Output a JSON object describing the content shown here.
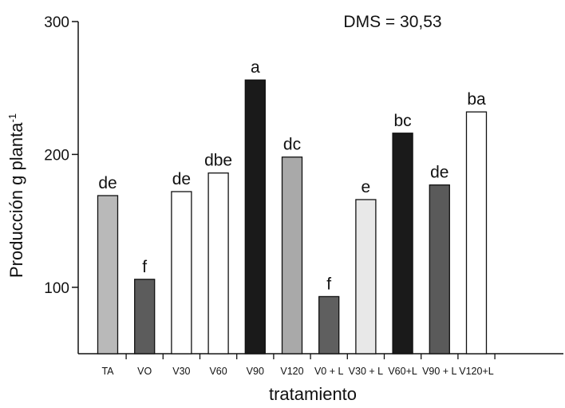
{
  "chart_data": {
    "type": "bar",
    "annotation": "DMS = 30,53",
    "xlabel": "tratamiento",
    "ylabel_main": "Producción g planta",
    "ylabel_sup": "-1",
    "ylim": [
      50,
      300
    ],
    "yticks": [
      {
        "value": 100,
        "label": "100"
      },
      {
        "value": 200,
        "label": "200"
      },
      {
        "value": 300,
        "label": "300"
      }
    ],
    "categories": [
      "TA",
      "VO",
      "V30",
      "V60",
      "V90",
      "V120",
      "V0 + L",
      "V30 + L",
      "V60+L",
      "V90 + L",
      "V120+L"
    ],
    "values": [
      169,
      106,
      172,
      186,
      256,
      198,
      93,
      166,
      216,
      177,
      232
    ],
    "letters": [
      "de",
      "f",
      "de",
      "dbe",
      "a",
      "dc",
      "f",
      "e",
      "bc",
      "de",
      "ba"
    ],
    "colors": [
      "#b9b9b9",
      "#5c5c5c",
      "#ffffff",
      "#ffffff",
      "#1a1a1a",
      "#a9a9a9",
      "#5f5f5f",
      "#e8e8e8",
      "#1a1a1a",
      "#5a5a5a",
      "#ffffff"
    ]
  }
}
